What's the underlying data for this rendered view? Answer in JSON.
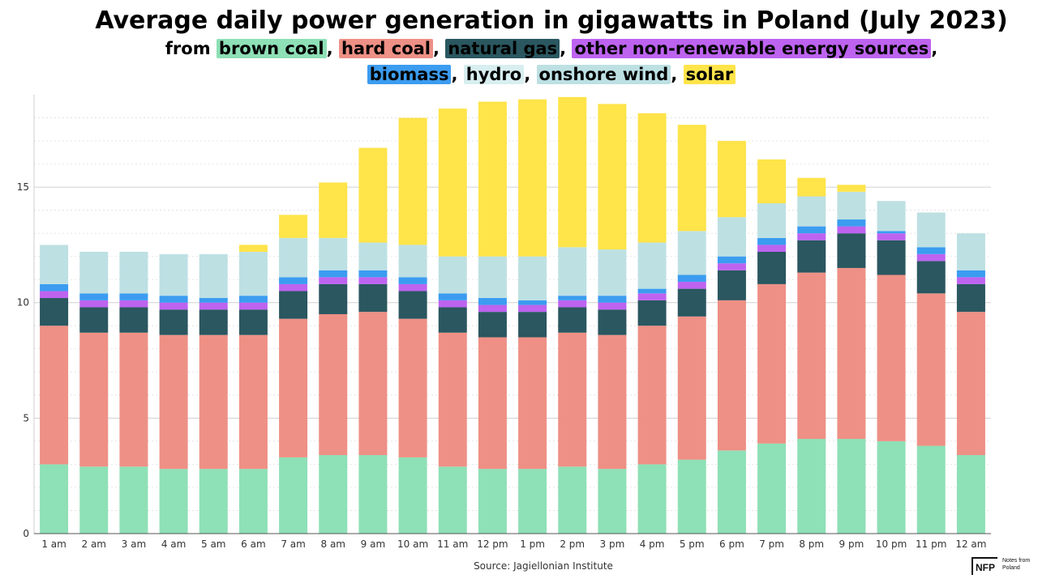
{
  "chart_data": {
    "type": "bar",
    "stacked": true,
    "title": "Average daily power generation in gigawatts in Poland (July 2023)",
    "subtitle_prefix": "from",
    "categories": [
      "1 am",
      "2 am",
      "3 am",
      "4 am",
      "5 am",
      "6 am",
      "7 am",
      "8 am",
      "9 am",
      "10 am",
      "11 am",
      "12 pm",
      "1 pm",
      "2 pm",
      "3 pm",
      "4 pm",
      "5 pm",
      "6 pm",
      "7 pm",
      "8 pm",
      "9 pm",
      "10 pm",
      "11 pm",
      "12 am"
    ],
    "ylim": [
      0,
      19
    ],
    "yticks": [
      0,
      5,
      10,
      15
    ],
    "grid": true,
    "series": [
      {
        "name": "brown coal",
        "color": "#8ee0b6",
        "values": [
          3.0,
          2.9,
          2.9,
          2.8,
          2.8,
          2.8,
          3.3,
          3.4,
          3.4,
          3.3,
          2.9,
          2.8,
          2.8,
          2.9,
          2.8,
          3.0,
          3.2,
          3.6,
          3.9,
          4.1,
          4.1,
          4.0,
          3.8,
          3.4
        ]
      },
      {
        "name": "hard coal",
        "color": "#ee9085",
        "values": [
          6.0,
          5.8,
          5.8,
          5.8,
          5.8,
          5.8,
          6.0,
          6.1,
          6.2,
          6.0,
          5.8,
          5.7,
          5.7,
          5.8,
          5.8,
          6.0,
          6.2,
          6.5,
          6.9,
          7.2,
          7.4,
          7.2,
          6.6,
          6.2
        ]
      },
      {
        "name": "natural gas",
        "color": "#2a5760",
        "values": [
          1.2,
          1.1,
          1.1,
          1.1,
          1.1,
          1.1,
          1.2,
          1.3,
          1.2,
          1.2,
          1.1,
          1.1,
          1.1,
          1.1,
          1.1,
          1.1,
          1.2,
          1.3,
          1.4,
          1.4,
          1.5,
          1.5,
          1.4,
          1.2
        ]
      },
      {
        "name": "other non-renewable energy sources",
        "color": "#bd63f0",
        "values": [
          0.3,
          0.3,
          0.3,
          0.3,
          0.3,
          0.3,
          0.3,
          0.3,
          0.3,
          0.3,
          0.3,
          0.3,
          0.3,
          0.3,
          0.3,
          0.3,
          0.3,
          0.3,
          0.3,
          0.3,
          0.3,
          0.3,
          0.3,
          0.3
        ]
      },
      {
        "name": "biomass",
        "color": "#3b9cf0",
        "values": [
          0.3,
          0.3,
          0.3,
          0.3,
          0.2,
          0.3,
          0.3,
          0.3,
          0.3,
          0.3,
          0.3,
          0.3,
          0.2,
          0.2,
          0.3,
          0.2,
          0.3,
          0.3,
          0.3,
          0.3,
          0.3,
          0.1,
          0.3,
          0.3
        ]
      },
      {
        "name": "hydro",
        "color": "#bde0e3",
        "values": [
          0,
          0,
          0,
          0,
          0,
          0,
          0,
          0,
          0,
          0,
          0,
          0,
          0,
          0,
          0,
          0,
          0,
          0,
          0,
          0,
          0,
          0,
          0,
          0
        ]
      },
      {
        "name": "onshore wind",
        "color": "#bde0e3",
        "values": [
          1.7,
          1.8,
          1.8,
          1.8,
          1.9,
          1.9,
          1.7,
          1.4,
          1.2,
          1.4,
          1.6,
          1.8,
          1.9,
          2.1,
          2.0,
          2.0,
          1.9,
          1.7,
          1.5,
          1.3,
          1.2,
          1.3,
          1.5,
          1.6
        ]
      },
      {
        "name": "solar",
        "color": "#ffe44a",
        "values": [
          0,
          0,
          0,
          0,
          0,
          0.3,
          1.0,
          2.4,
          4.1,
          5.5,
          6.4,
          6.7,
          6.8,
          6.5,
          6.3,
          5.6,
          4.6,
          3.3,
          1.9,
          0.8,
          0.3,
          0,
          0,
          0
        ]
      }
    ],
    "source": "Source: Jagiellonian Institute"
  },
  "legend_text_colors": {
    "brown coal": "#000000",
    "hard coal": "#000000",
    "natural gas": "#000000",
    "other non-renewable energy sources": "#000000",
    "biomass": "#000000",
    "hydro": "#000000",
    "onshore wind": "#000000",
    "solar": "#000000"
  },
  "logo": {
    "mark": "NFP",
    "text": "Notes from Poland"
  }
}
